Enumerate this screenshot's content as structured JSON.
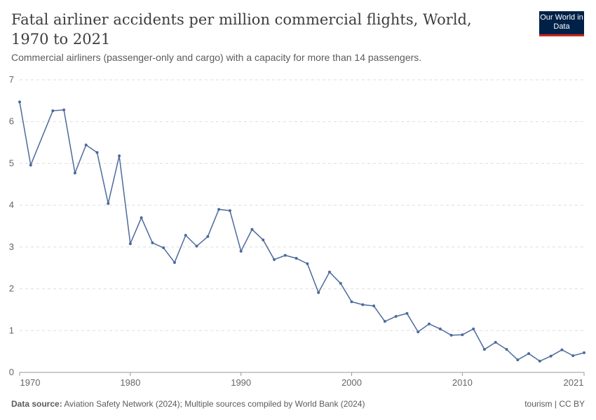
{
  "header": {
    "title": "Fatal airliner accidents per million commercial flights, World, 1970 to 2021",
    "subtitle": "Commercial airliners (passenger-only and cargo) with a capacity for more than 14 passengers.",
    "logo": "Our World in Data"
  },
  "footer": {
    "source_label": "Data source:",
    "source": "Aviation Safety Network (2024); Multiple sources compiled by World Bank (2024)",
    "license": "tourism | CC BY"
  },
  "chart_data": {
    "type": "line",
    "title": "Fatal airliner accidents per million commercial flights, World, 1970 to 2021",
    "xlim": [
      1970,
      2021
    ],
    "ylim": [
      0,
      7
    ],
    "grid": true,
    "x_ticks": [
      "1970",
      "1980",
      "1990",
      "2000",
      "2010",
      "2021"
    ],
    "y_ticks": [
      "0",
      "1",
      "2",
      "3",
      "4",
      "5",
      "6",
      "7"
    ],
    "color": "#4c6a9c",
    "series": [
      {
        "points": [
          [
            1970,
            6.47
          ],
          [
            1971,
            4.96
          ],
          [
            1973,
            6.26
          ],
          [
            1974,
            6.28
          ],
          [
            1975,
            4.77
          ],
          [
            1976,
            5.44
          ],
          [
            1977,
            5.26
          ],
          [
            1978,
            4.04
          ],
          [
            1979,
            5.18
          ],
          [
            1980,
            3.08
          ],
          [
            1981,
            3.7
          ],
          [
            1982,
            3.1
          ],
          [
            1983,
            2.98
          ],
          [
            1984,
            2.63
          ],
          [
            1985,
            3.28
          ],
          [
            1986,
            3.02
          ],
          [
            1987,
            3.25
          ],
          [
            1988,
            3.9
          ],
          [
            1989,
            3.87
          ],
          [
            1990,
            2.9
          ],
          [
            1991,
            3.42
          ],
          [
            1992,
            3.17
          ],
          [
            1993,
            2.7
          ],
          [
            1994,
            2.8
          ],
          [
            1995,
            2.73
          ],
          [
            1996,
            2.6
          ],
          [
            1997,
            1.91
          ],
          [
            1998,
            2.4
          ],
          [
            1999,
            2.13
          ],
          [
            2000,
            1.69
          ],
          [
            2001,
            1.62
          ],
          [
            2002,
            1.59
          ],
          [
            2003,
            1.22
          ],
          [
            2004,
            1.34
          ],
          [
            2005,
            1.41
          ],
          [
            2006,
            0.97
          ],
          [
            2007,
            1.16
          ],
          [
            2008,
            1.04
          ],
          [
            2009,
            0.89
          ],
          [
            2010,
            0.9
          ],
          [
            2011,
            1.04
          ],
          [
            2012,
            0.55
          ],
          [
            2013,
            0.72
          ],
          [
            2014,
            0.55
          ],
          [
            2015,
            0.3
          ],
          [
            2016,
            0.45
          ],
          [
            2017,
            0.27
          ],
          [
            2018,
            0.39
          ],
          [
            2019,
            0.54
          ],
          [
            2020,
            0.4
          ],
          [
            2021,
            0.47
          ]
        ]
      }
    ]
  }
}
